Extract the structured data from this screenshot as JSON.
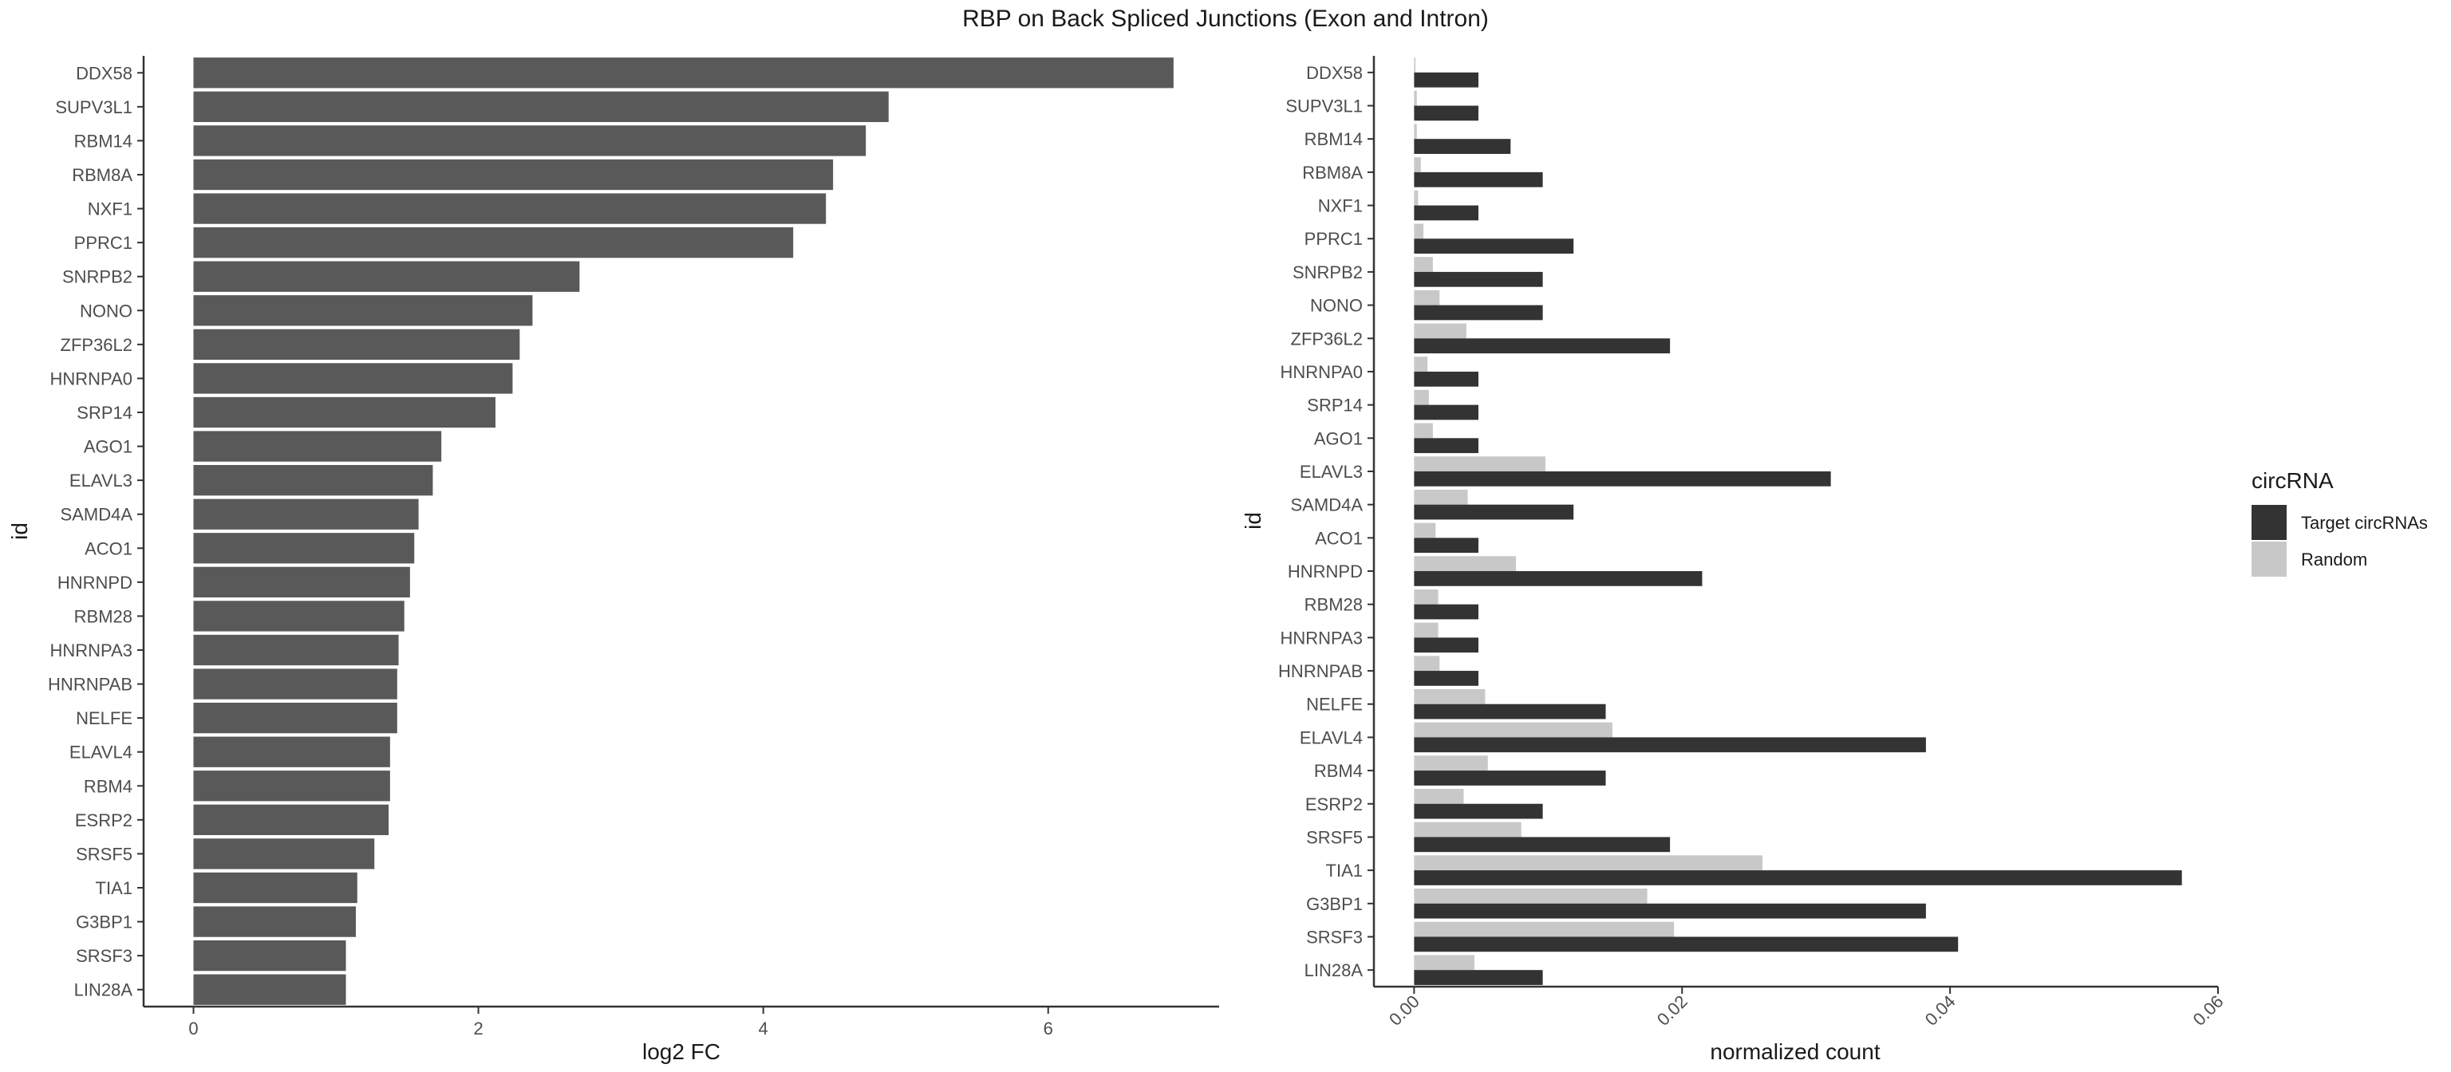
{
  "title": "RBP on Back Spliced Junctions (Exon and Intron)",
  "chart_data": [
    {
      "type": "bar",
      "orientation": "horizontal",
      "xlabel": "log2 FC",
      "ylabel": "id",
      "xlim": [
        -0.35,
        7.2
      ],
      "xticks": [
        0,
        2,
        4,
        6
      ],
      "xtick_labels": [
        "0",
        "2",
        "4",
        "6"
      ],
      "categories": [
        "DDX58",
        "SUPV3L1",
        "RBM14",
        "RBM8A",
        "NXF1",
        "PPRC1",
        "SNRPB2",
        "NONO",
        "ZFP36L2",
        "HNRNPA0",
        "SRP14",
        "AGO1",
        "ELAVL3",
        "SAMD4A",
        "ACO1",
        "HNRNPD",
        "RBM28",
        "HNRNPA3",
        "HNRNPAB",
        "NELFE",
        "ELAVL4",
        "RBM4",
        "ESRP2",
        "SRSF5",
        "TIA1",
        "G3BP1",
        "SRSF3",
        "LIN28A"
      ],
      "values": [
        6.88,
        4.88,
        4.72,
        4.49,
        4.44,
        4.21,
        2.71,
        2.38,
        2.29,
        2.24,
        2.12,
        1.74,
        1.68,
        1.58,
        1.55,
        1.52,
        1.48,
        1.44,
        1.43,
        1.43,
        1.38,
        1.38,
        1.37,
        1.27,
        1.15,
        1.14,
        1.07,
        1.07
      ],
      "bar_color": "#595959",
      "grid": false
    },
    {
      "type": "bar",
      "orientation": "horizontal",
      "grouped": true,
      "xlabel": "normalized count",
      "ylabel": "id",
      "xlim": [
        -0.003,
        0.06
      ],
      "xticks": [
        0,
        0.02,
        0.04,
        0.06
      ],
      "xtick_labels": [
        "0.00",
        "0.02",
        "0.04",
        "0.06"
      ],
      "categories": [
        "DDX58",
        "SUPV3L1",
        "RBM14",
        "RBM8A",
        "NXF1",
        "PPRC1",
        "SNRPB2",
        "NONO",
        "ZFP36L2",
        "HNRNPA0",
        "SRP14",
        "AGO1",
        "ELAVL3",
        "SAMD4A",
        "ACO1",
        "HNRNPD",
        "RBM28",
        "HNRNPA3",
        "HNRNPAB",
        "NELFE",
        "ELAVL4",
        "RBM4",
        "ESRP2",
        "SRSF5",
        "TIA1",
        "G3BP1",
        "SRSF3",
        "LIN28A"
      ],
      "legend_title": "circRNA",
      "legend_position": "right",
      "grid": false,
      "series": [
        {
          "name": "Target circRNAs",
          "color": "#333333",
          "values": [
            0.0048,
            0.0048,
            0.0072,
            0.0096,
            0.0048,
            0.0119,
            0.0096,
            0.0096,
            0.0191,
            0.0048,
            0.0048,
            0.0048,
            0.0311,
            0.0119,
            0.0048,
            0.0215,
            0.0048,
            0.0048,
            0.0048,
            0.0143,
            0.0382,
            0.0143,
            0.0096,
            0.0191,
            0.0573,
            0.0382,
            0.0406,
            0.0096
          ]
        },
        {
          "name": "Random",
          "color": "#c8c8c8",
          "values": [
            0.0001,
            0.0002,
            0.0002,
            0.0005,
            0.0003,
            0.0007,
            0.0014,
            0.0019,
            0.0039,
            0.001,
            0.0011,
            0.0014,
            0.0098,
            0.004,
            0.0016,
            0.0076,
            0.0018,
            0.0018,
            0.0019,
            0.0053,
            0.0148,
            0.0055,
            0.0037,
            0.008,
            0.026,
            0.0174,
            0.0194,
            0.0045
          ]
        }
      ]
    }
  ]
}
